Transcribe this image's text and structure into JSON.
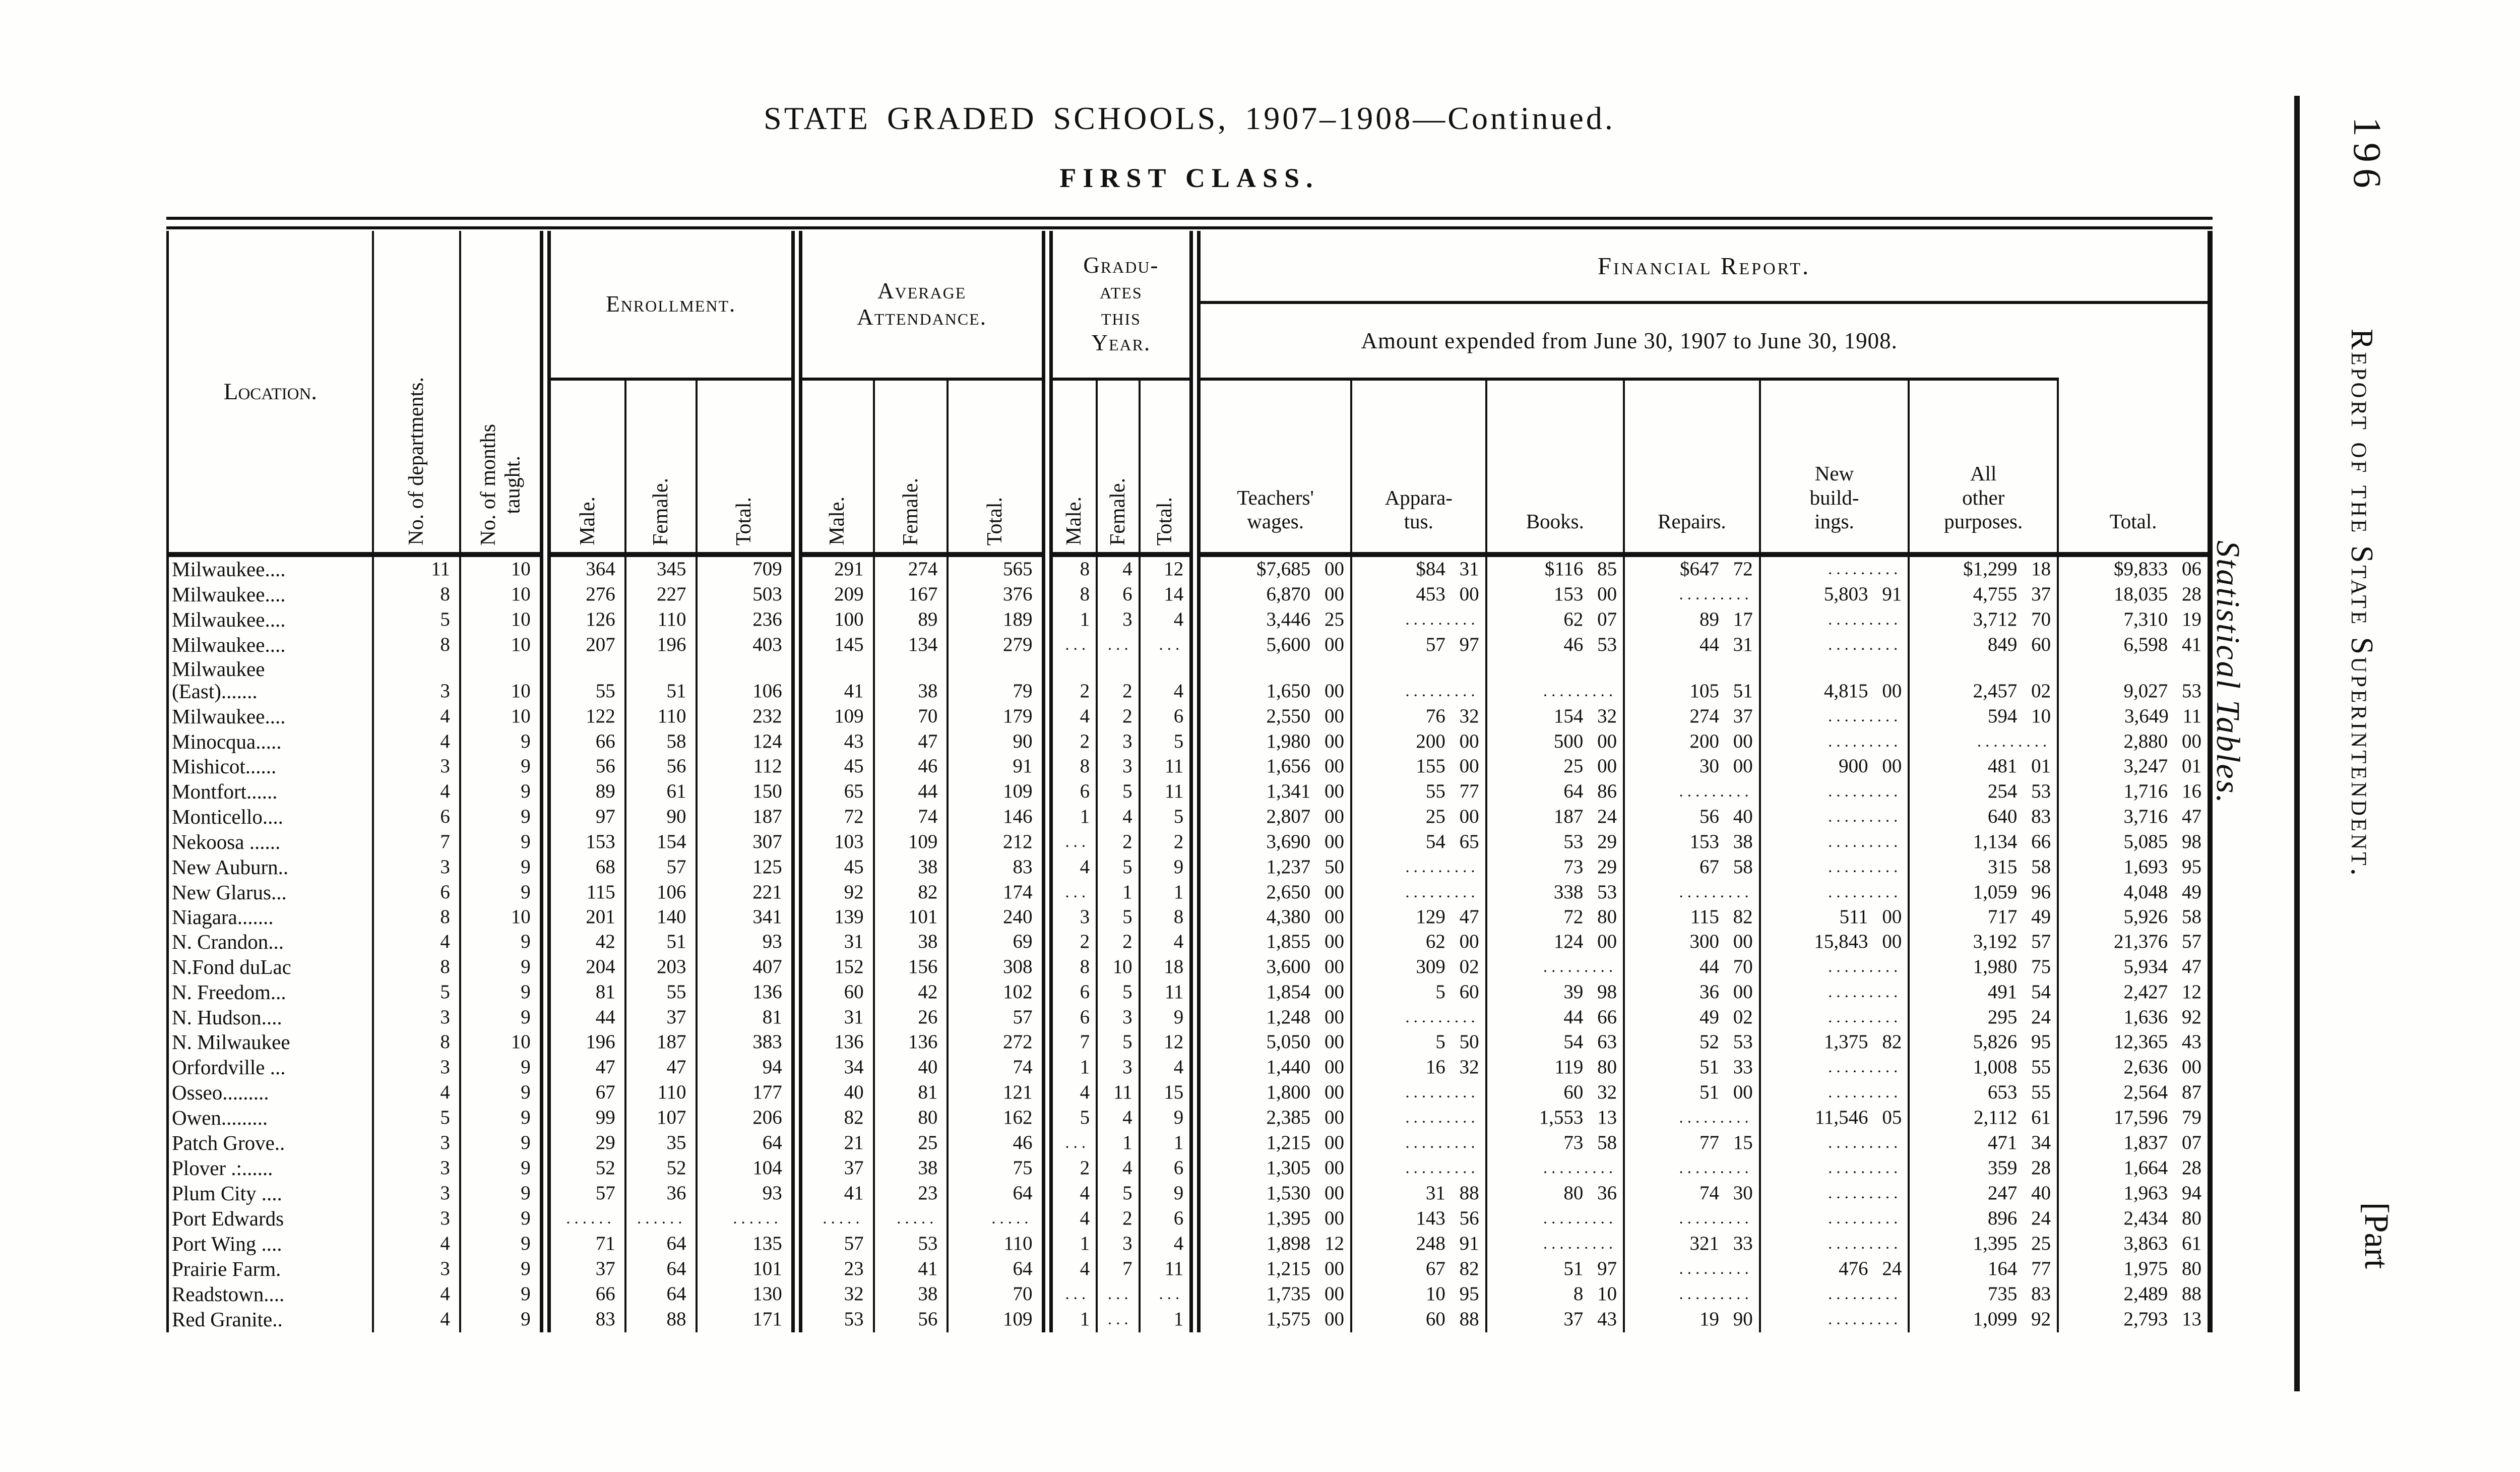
{
  "page": {
    "title": "STATE GRADED SCHOOLS, 1907–1908—Continued.",
    "subtitle": "FIRST CLASS.",
    "margin": {
      "page_number": "196",
      "running_title": "Report of the State Superintendent.",
      "part_label": "[Part",
      "side_label": "Statistical Tables."
    }
  },
  "table": {
    "headers": {
      "location": "Location.",
      "departments": "No. of departments.",
      "months": "No. of months\ntaught.",
      "enrollment": "Enrollment.",
      "attendance": "Average\nAttendance.",
      "graduates": "Gradu-\nates\nthis\nYear.",
      "male": "Male.",
      "female": "Female.",
      "total": "Total.",
      "financial": "Financial Report.",
      "financial_sub": "Amount expended from June 30, 1907 to June 30, 1908.",
      "wages": "Teachers'\nwages.",
      "apparatus": "Appara-\ntus.",
      "books": "Books.",
      "repairs": "Repairs.",
      "new_buildings": "New\nbuild-\nings.",
      "other": "All\nother\npurposes.",
      "fin_total": "Total."
    },
    "rows": [
      {
        "location": "Milwaukee....",
        "depts": "11",
        "months": "10",
        "enr": [
          "364",
          "345",
          "709"
        ],
        "att": [
          "291",
          "274",
          "565"
        ],
        "grad": [
          "8",
          "4",
          "12"
        ],
        "fin": [
          "$7,685 00",
          "$84 31",
          "$116 85",
          "$647 72",
          "",
          "$1,299 18",
          "$9,833 06"
        ]
      },
      {
        "location": "Milwaukee....",
        "depts": "8",
        "months": "10",
        "enr": [
          "276",
          "227",
          "503"
        ],
        "att": [
          "209",
          "167",
          "376"
        ],
        "grad": [
          "8",
          "6",
          "14"
        ],
        "fin": [
          "6,870 00",
          "453 00",
          "153 00",
          "",
          "5,803 91",
          "4,755 37",
          "18,035 28"
        ]
      },
      {
        "location": "Milwaukee....",
        "depts": "5",
        "months": "10",
        "enr": [
          "126",
          "110",
          "236"
        ],
        "att": [
          "100",
          "89",
          "189"
        ],
        "grad": [
          "1",
          "3",
          "4"
        ],
        "fin": [
          "3,446 25",
          "",
          "62 07",
          "89 17",
          "",
          "3,712 70",
          "7,310 19"
        ]
      },
      {
        "location": "Milwaukee....",
        "depts": "8",
        "months": "10",
        "enr": [
          "207",
          "196",
          "403"
        ],
        "att": [
          "145",
          "134",
          "279"
        ],
        "grad": [
          "",
          "",
          ""
        ],
        "fin": [
          "5,600 00",
          "57 97",
          "46 53",
          "44 31",
          "",
          "849 60",
          "6,598 41"
        ]
      },
      {
        "location": "Milwaukee\n(East).......",
        "depts": "3",
        "months": "10",
        "enr": [
          "55",
          "51",
          "106"
        ],
        "att": [
          "41",
          "38",
          "79"
        ],
        "grad": [
          "2",
          "2",
          "4"
        ],
        "fin": [
          "1,650 00",
          "",
          "",
          "105 51",
          "4,815 00",
          "2,457 02",
          "9,027 53"
        ]
      },
      {
        "location": "Milwaukee....",
        "depts": "4",
        "months": "10",
        "enr": [
          "122",
          "110",
          "232"
        ],
        "att": [
          "109",
          "70",
          "179"
        ],
        "grad": [
          "4",
          "2",
          "6"
        ],
        "fin": [
          "2,550 00",
          "76 32",
          "154 32",
          "274 37",
          "",
          "594 10",
          "3,649 11"
        ]
      },
      {
        "location": "Minocqua.....",
        "depts": "4",
        "months": "9",
        "enr": [
          "66",
          "58",
          "124"
        ],
        "att": [
          "43",
          "47",
          "90"
        ],
        "grad": [
          "2",
          "3",
          "5"
        ],
        "fin": [
          "1,980 00",
          "200 00",
          "500 00",
          "200 00",
          "",
          "",
          "2,880 00"
        ]
      },
      {
        "location": "Mishicot......",
        "depts": "3",
        "months": "9",
        "enr": [
          "56",
          "56",
          "112"
        ],
        "att": [
          "45",
          "46",
          "91"
        ],
        "grad": [
          "8",
          "3",
          "11"
        ],
        "fin": [
          "1,656 00",
          "155 00",
          "25 00",
          "30 00",
          "900 00",
          "481 01",
          "3,247 01"
        ]
      },
      {
        "location": "Montfort......",
        "depts": "4",
        "months": "9",
        "enr": [
          "89",
          "61",
          "150"
        ],
        "att": [
          "65",
          "44",
          "109"
        ],
        "grad": [
          "6",
          "5",
          "11"
        ],
        "fin": [
          "1,341 00",
          "55 77",
          "64 86",
          "",
          "",
          "254 53",
          "1,716 16"
        ]
      },
      {
        "location": "Monticello....",
        "depts": "6",
        "months": "9",
        "enr": [
          "97",
          "90",
          "187"
        ],
        "att": [
          "72",
          "74",
          "146"
        ],
        "grad": [
          "1",
          "4",
          "5"
        ],
        "fin": [
          "2,807 00",
          "25 00",
          "187 24",
          "56 40",
          "",
          "640 83",
          "3,716 47"
        ]
      },
      {
        "location": "Nekoosa ......",
        "depts": "7",
        "months": "9",
        "enr": [
          "153",
          "154",
          "307"
        ],
        "att": [
          "103",
          "109",
          "212"
        ],
        "grad": [
          "",
          "2",
          "2"
        ],
        "fin": [
          "3,690 00",
          "54 65",
          "53 29",
          "153 38",
          "",
          "1,134 66",
          "5,085 98"
        ]
      },
      {
        "location": "New Auburn..",
        "depts": "3",
        "months": "9",
        "enr": [
          "68",
          "57",
          "125"
        ],
        "att": [
          "45",
          "38",
          "83"
        ],
        "grad": [
          "4",
          "5",
          "9"
        ],
        "fin": [
          "1,237 50",
          "",
          "73 29",
          "67 58",
          "",
          "315 58",
          "1,693 95"
        ]
      },
      {
        "location": "New Glarus...",
        "depts": "6",
        "months": "9",
        "enr": [
          "115",
          "106",
          "221"
        ],
        "att": [
          "92",
          "82",
          "174"
        ],
        "grad": [
          "",
          "1",
          "1"
        ],
        "fin": [
          "2,650 00",
          "",
          "338 53",
          "",
          "",
          "1,059 96",
          "4,048 49"
        ]
      },
      {
        "location": "Niagara.......",
        "depts": "8",
        "months": "10",
        "enr": [
          "201",
          "140",
          "341"
        ],
        "att": [
          "139",
          "101",
          "240"
        ],
        "grad": [
          "3",
          "5",
          "8"
        ],
        "fin": [
          "4,380 00",
          "129 47",
          "72 80",
          "115 82",
          "511 00",
          "717 49",
          "5,926 58"
        ]
      },
      {
        "location": "N. Crandon...",
        "depts": "4",
        "months": "9",
        "enr": [
          "42",
          "51",
          "93"
        ],
        "att": [
          "31",
          "38",
          "69"
        ],
        "grad": [
          "2",
          "2",
          "4"
        ],
        "fin": [
          "1,855 00",
          "62 00",
          "124 00",
          "300 00",
          "15,843 00",
          "3,192 57",
          "21,376 57"
        ]
      },
      {
        "location": "N.Fond duLac",
        "depts": "8",
        "months": "9",
        "enr": [
          "204",
          "203",
          "407"
        ],
        "att": [
          "152",
          "156",
          "308"
        ],
        "grad": [
          "8",
          "10",
          "18"
        ],
        "fin": [
          "3,600 00",
          "309 02",
          "",
          "44 70",
          "",
          "1,980 75",
          "5,934 47"
        ]
      },
      {
        "location": "N. Freedom...",
        "depts": "5",
        "months": "9",
        "enr": [
          "81",
          "55",
          "136"
        ],
        "att": [
          "60",
          "42",
          "102"
        ],
        "grad": [
          "6",
          "5",
          "11"
        ],
        "fin": [
          "1,854 00",
          "5 60",
          "39 98",
          "36 00",
          "",
          "491 54",
          "2,427 12"
        ]
      },
      {
        "location": "N. Hudson....",
        "depts": "3",
        "months": "9",
        "enr": [
          "44",
          "37",
          "81"
        ],
        "att": [
          "31",
          "26",
          "57"
        ],
        "grad": [
          "6",
          "3",
          "9"
        ],
        "fin": [
          "1,248 00",
          "",
          "44 66",
          "49 02",
          "",
          "295 24",
          "1,636 92"
        ]
      },
      {
        "location": "N. Milwaukee",
        "depts": "8",
        "months": "10",
        "enr": [
          "196",
          "187",
          "383"
        ],
        "att": [
          "136",
          "136",
          "272"
        ],
        "grad": [
          "7",
          "5",
          "12"
        ],
        "fin": [
          "5,050 00",
          "5 50",
          "54 63",
          "52 53",
          "1,375 82",
          "5,826 95",
          "12,365 43"
        ]
      },
      {
        "location": "Orfordville ...",
        "depts": "3",
        "months": "9",
        "enr": [
          "47",
          "47",
          "94"
        ],
        "att": [
          "34",
          "40",
          "74"
        ],
        "grad": [
          "1",
          "3",
          "4"
        ],
        "fin": [
          "1,440 00",
          "16 32",
          "119 80",
          "51 33",
          "",
          "1,008 55",
          "2,636 00"
        ]
      },
      {
        "location": "Osseo.........",
        "depts": "4",
        "months": "9",
        "enr": [
          "67",
          "110",
          "177"
        ],
        "att": [
          "40",
          "81",
          "121"
        ],
        "grad": [
          "4",
          "11",
          "15"
        ],
        "fin": [
          "1,800 00",
          "",
          "60 32",
          "51 00",
          "",
          "653 55",
          "2,564 87"
        ]
      },
      {
        "location": "Owen.........",
        "depts": "5",
        "months": "9",
        "enr": [
          "99",
          "107",
          "206"
        ],
        "att": [
          "82",
          "80",
          "162"
        ],
        "grad": [
          "5",
          "4",
          "9"
        ],
        "fin": [
          "2,385 00",
          "",
          "1,553 13",
          "",
          "11,546 05",
          "2,112 61",
          "17,596 79"
        ]
      },
      {
        "location": "Patch Grove..",
        "depts": "3",
        "months": "9",
        "enr": [
          "29",
          "35",
          "64"
        ],
        "att": [
          "21",
          "25",
          "46"
        ],
        "grad": [
          "",
          "1",
          "1"
        ],
        "fin": [
          "1,215 00",
          "",
          "73 58",
          "77 15",
          "",
          "471 34",
          "1,837 07"
        ]
      },
      {
        "location": "Plover .:......",
        "depts": "3",
        "months": "9",
        "enr": [
          "52",
          "52",
          "104"
        ],
        "att": [
          "37",
          "38",
          "75"
        ],
        "grad": [
          "2",
          "4",
          "6"
        ],
        "fin": [
          "1,305 00",
          "",
          "",
          "",
          "",
          "359 28",
          "1,664 28"
        ]
      },
      {
        "location": "Plum City ....",
        "depts": "3",
        "months": "9",
        "enr": [
          "57",
          "36",
          "93"
        ],
        "att": [
          "41",
          "23",
          "64"
        ],
        "grad": [
          "4",
          "5",
          "9"
        ],
        "fin": [
          "1,530 00",
          "31 88",
          "80 36",
          "74 30",
          "",
          "247 40",
          "1,963 94"
        ]
      },
      {
        "location": "Port Edwards",
        "depts": "3",
        "months": "9",
        "enr": [
          "",
          "",
          ""
        ],
        "att": [
          "",
          "",
          ""
        ],
        "grad": [
          "4",
          "2",
          "6"
        ],
        "fin": [
          "1,395 00",
          "143 56",
          "",
          "",
          "",
          "896 24",
          "2,434 80"
        ]
      },
      {
        "location": "Port Wing ....",
        "depts": "4",
        "months": "9",
        "enr": [
          "71",
          "64",
          "135"
        ],
        "att": [
          "57",
          "53",
          "110"
        ],
        "grad": [
          "1",
          "3",
          "4"
        ],
        "fin": [
          "1,898 12",
          "248 91",
          "",
          "321 33",
          "",
          "1,395 25",
          "3,863 61"
        ]
      },
      {
        "location": "Prairie Farm.",
        "depts": "3",
        "months": "9",
        "enr": [
          "37",
          "64",
          "101"
        ],
        "att": [
          "23",
          "41",
          "64"
        ],
        "grad": [
          "4",
          "7",
          "11"
        ],
        "fin": [
          "1,215 00",
          "67 82",
          "51 97",
          "",
          "476 24",
          "164 77",
          "1,975 80"
        ]
      },
      {
        "location": "Readstown....",
        "depts": "4",
        "months": "9",
        "enr": [
          "66",
          "64",
          "130"
        ],
        "att": [
          "32",
          "38",
          "70"
        ],
        "grad": [
          "",
          "",
          ""
        ],
        "fin": [
          "1,735 00",
          "10 95",
          "8 10",
          "",
          "",
          "735 83",
          "2,489 88"
        ]
      },
      {
        "location": "Red Granite..",
        "depts": "4",
        "months": "9",
        "enr": [
          "83",
          "88",
          "171"
        ],
        "att": [
          "53",
          "56",
          "109"
        ],
        "grad": [
          "1",
          "",
          "1"
        ],
        "fin": [
          "1,575 00",
          "60 88",
          "37 43",
          "19 90",
          "",
          "1,099 92",
          "2,793 13"
        ]
      }
    ]
  }
}
